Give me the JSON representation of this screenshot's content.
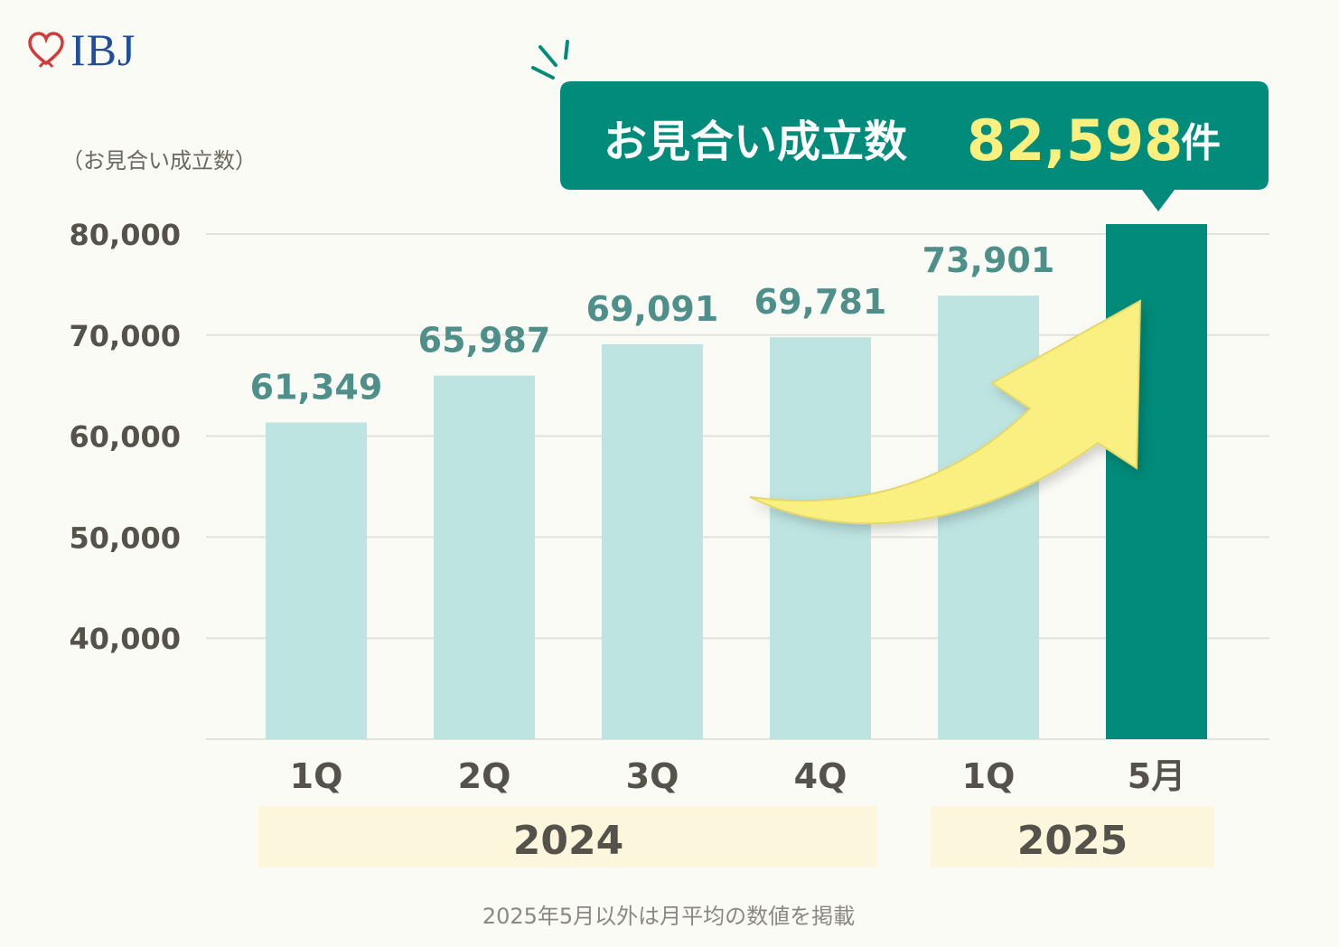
{
  "brand": {
    "logo_text": "IBJ",
    "heart_color": "#d23b3b",
    "text_color": "#1f4e9c"
  },
  "callout": {
    "label": "お見合い成立数",
    "value": "82,598",
    "unit": "件",
    "bg": "#008b7a",
    "value_color": "#fbf07e"
  },
  "footnote": "2025年5月以外は月平均の数値を掲載",
  "chart_data": {
    "type": "bar",
    "title": "",
    "ylabel": "（お見合い成立数）",
    "xlabel": "",
    "ylim": [
      30000,
      80000
    ],
    "yticks": [
      40000,
      50000,
      60000,
      70000,
      80000
    ],
    "ytick_labels": [
      "40,000",
      "50,000",
      "60,000",
      "70,000",
      "80,000"
    ],
    "grid": true,
    "categories": [
      "1Q",
      "2Q",
      "3Q",
      "4Q",
      "1Q",
      "5月"
    ],
    "values": [
      61349,
      65987,
      69091,
      69781,
      73901,
      82598
    ],
    "value_labels": [
      "61,349",
      "65,987",
      "69,091",
      "69,781",
      "73,901",
      ""
    ],
    "highlight_index": 5,
    "colors": {
      "bar": "#bde4e1",
      "highlight": "#008b7a",
      "value_label": "#4f8f8a",
      "axis_text": "#54524a",
      "grid": "#e3e3dc",
      "year_band": "#fbf6dc",
      "arrow": "#faf082"
    },
    "groups": [
      {
        "label": "2024",
        "start": 0,
        "end": 3
      },
      {
        "label": "2025",
        "start": 4,
        "end": 5
      }
    ]
  }
}
